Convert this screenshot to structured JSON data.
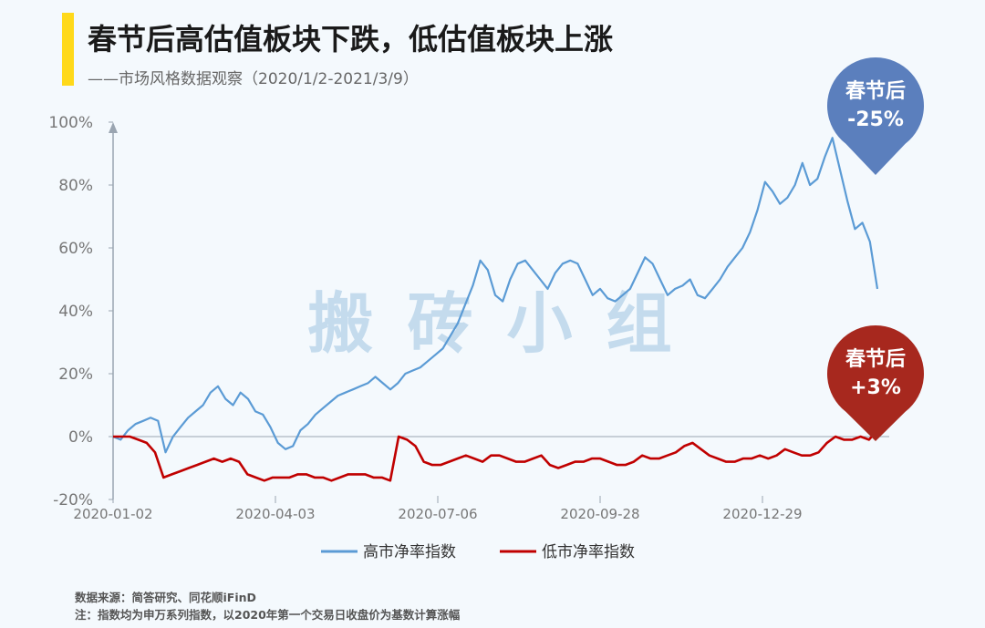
{
  "header": {
    "title": "春节后高估值板块下跌，低估值板块上涨",
    "subtitle": "——市场风格数据观察（2020/1/2-2021/3/9）"
  },
  "watermark": "搬 砖 小 组",
  "callouts": {
    "high": {
      "line1": "春节后",
      "line2": "-25%",
      "color": "#5b7fbd"
    },
    "low": {
      "line1": "春节后",
      "line2": "+3%",
      "color": "#a7281e"
    }
  },
  "footer": {
    "source": "数据来源：简答研究、同花顺iFinD",
    "note": "注：指数均为申万系列指数，以2020年第一个交易日收盘价为基数计算涨幅"
  },
  "chart_data": {
    "type": "line",
    "x_tick_labels": [
      "2020-01-02",
      "2020-04-03",
      "2020-07-06",
      "2020-09-28",
      "2020-12-29"
    ],
    "y_ticks": [
      -20,
      0,
      20,
      40,
      60,
      80,
      100
    ],
    "y_tick_labels": [
      "-20%",
      "0%",
      "20%",
      "40%",
      "60%",
      "80%",
      "100%"
    ],
    "ylim": [
      -20,
      100
    ],
    "legend_position": "bottom",
    "series": [
      {
        "name": "高市净率指数",
        "color": "#5b9bd5",
        "values": [
          0,
          -1,
          2,
          4,
          5,
          6,
          5,
          -5,
          0,
          3,
          6,
          8,
          10,
          14,
          16,
          12,
          10,
          14,
          12,
          8,
          7,
          3,
          -2,
          -4,
          -3,
          2,
          4,
          7,
          9,
          11,
          13,
          14,
          15,
          16,
          17,
          19,
          17,
          15,
          17,
          20,
          21,
          22,
          24,
          26,
          28,
          32,
          36,
          42,
          48,
          56,
          53,
          45,
          43,
          50,
          55,
          56,
          53,
          50,
          47,
          52,
          55,
          56,
          55,
          50,
          45,
          47,
          44,
          43,
          45,
          47,
          52,
          57,
          55,
          50,
          45,
          47,
          48,
          50,
          45,
          44,
          47,
          50,
          54,
          57,
          60,
          65,
          72,
          81,
          78,
          74,
          76,
          80,
          87,
          80,
          82,
          89,
          95,
          85,
          75,
          66,
          68,
          62,
          47
        ],
        "final_change": "-25%"
      },
      {
        "name": "低市净率指数",
        "color": "#c00000",
        "values": [
          0,
          0,
          0,
          -1,
          -2,
          -5,
          -13,
          -12,
          -11,
          -10,
          -9,
          -8,
          -7,
          -8,
          -7,
          -8,
          -12,
          -13,
          -14,
          -13,
          -13,
          -13,
          -12,
          -12,
          -13,
          -13,
          -14,
          -13,
          -12,
          -12,
          -12,
          -13,
          -13,
          -14,
          0,
          -1,
          -3,
          -8,
          -9,
          -9,
          -8,
          -7,
          -6,
          -7,
          -8,
          -6,
          -6,
          -7,
          -8,
          -8,
          -7,
          -6,
          -9,
          -10,
          -9,
          -8,
          -8,
          -7,
          -7,
          -8,
          -9,
          -9,
          -8,
          -6,
          -7,
          -7,
          -6,
          -5,
          -3,
          -2,
          -4,
          -6,
          -7,
          -8,
          -8,
          -7,
          -7,
          -6,
          -7,
          -6,
          -4,
          -5,
          -6,
          -6,
          -5,
          -2,
          0,
          -1,
          -1,
          0,
          -1,
          2
        ],
        "final_change": "+3%"
      }
    ]
  }
}
